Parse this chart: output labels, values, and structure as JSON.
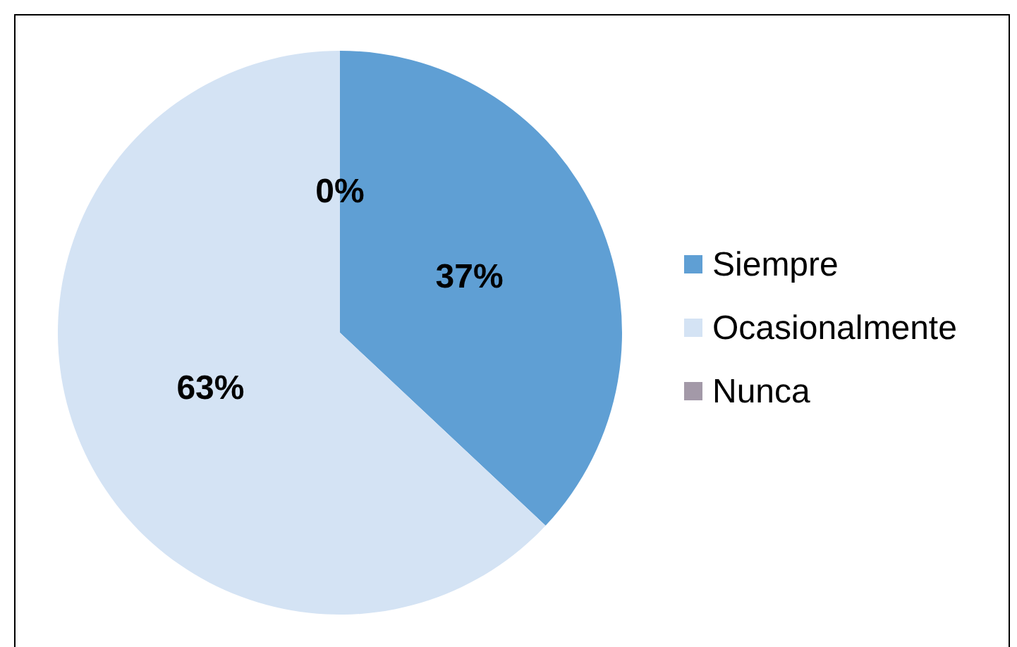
{
  "chart_data": {
    "type": "pie",
    "categories": [
      "Siempre",
      "Ocasionalmente",
      "Nunca"
    ],
    "values": [
      37,
      63,
      0
    ],
    "colors": [
      "#5f9fd4",
      "#d4e3f4",
      "#a399a8"
    ],
    "value_labels": [
      "37%",
      "63%",
      "0%"
    ],
    "legend": "right"
  }
}
